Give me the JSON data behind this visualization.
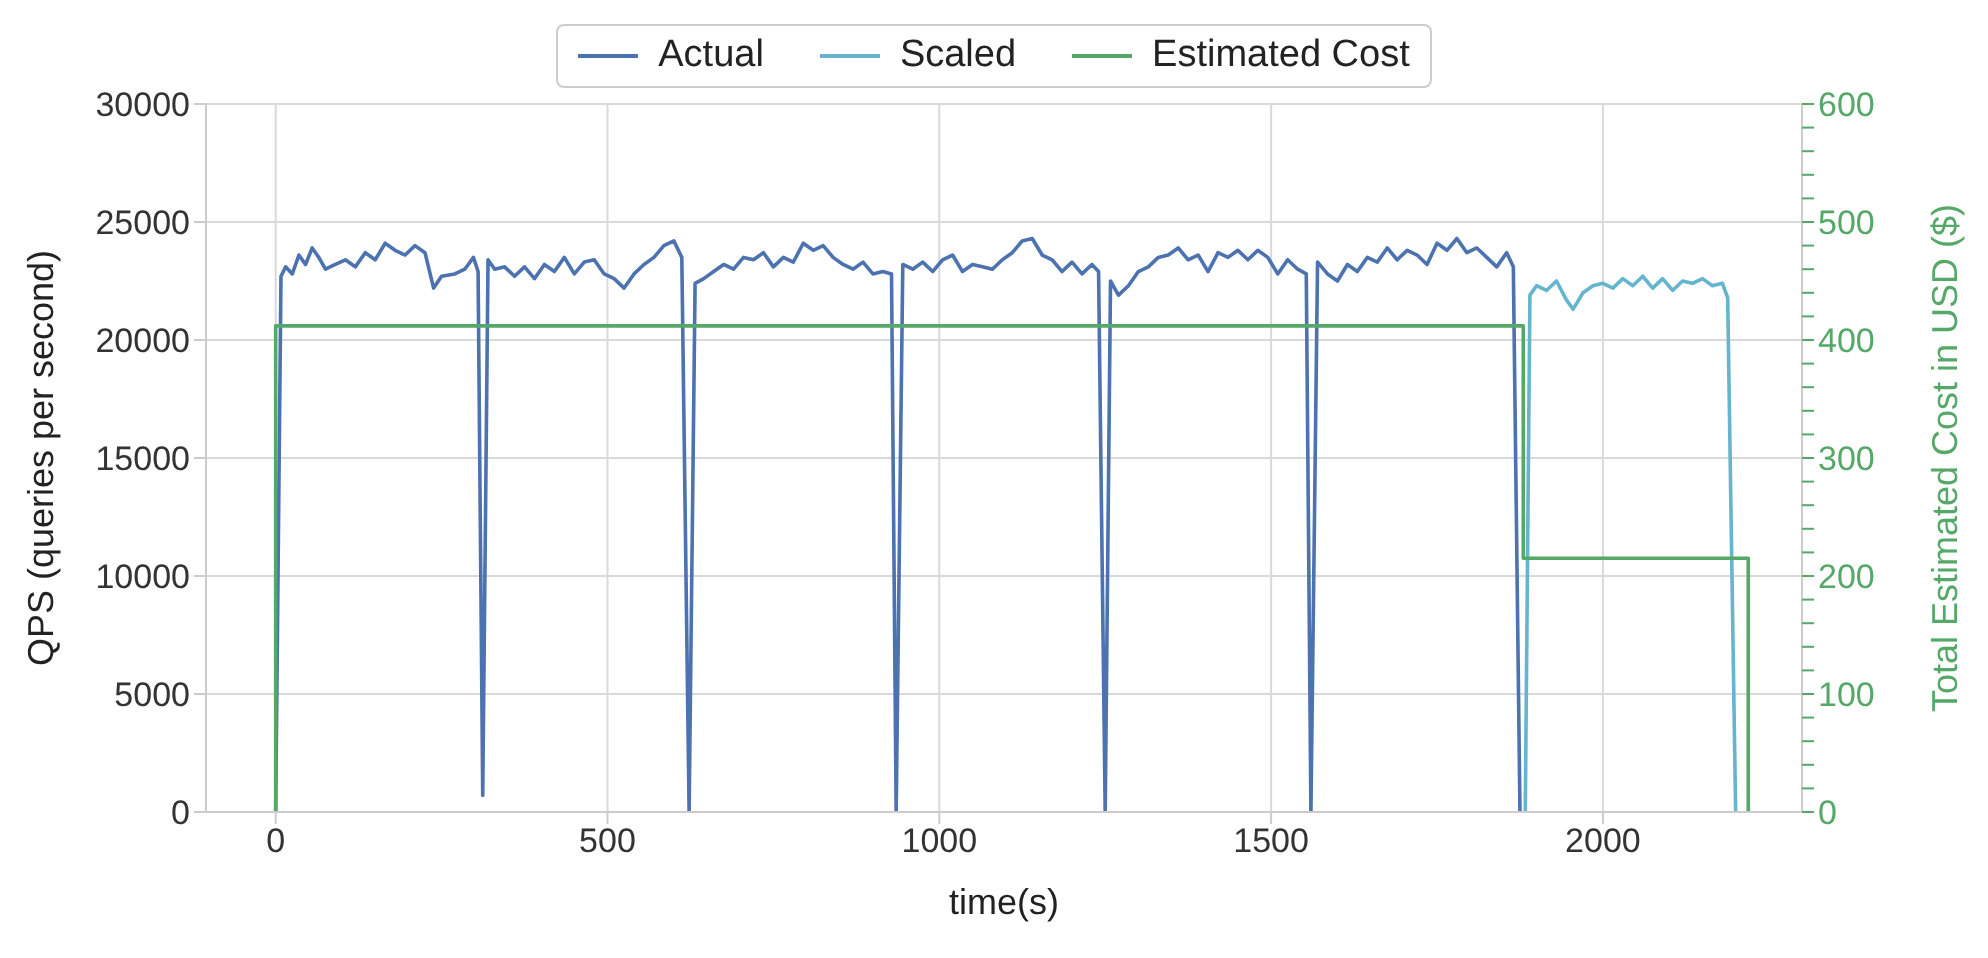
{
  "chart_data": {
    "type": "line",
    "xlabel": "time(s)",
    "ylabel": "QPS (queries per second)",
    "y2label": "Total Estimated Cost in USD ($)",
    "xlim": [
      -105,
      2300
    ],
    "xticks": [
      0,
      500,
      1000,
      1500,
      2000
    ],
    "ylim": [
      0,
      30000
    ],
    "yticks": [
      0,
      5000,
      10000,
      15000,
      20000,
      25000,
      30000
    ],
    "y2lim": [
      0,
      600
    ],
    "y2ticks": [
      0,
      {
        "value": 20,
        "label": null
      },
      {
        "value": 40,
        "label": null
      },
      {
        "value": 60,
        "label": null
      },
      {
        "value": 80,
        "label": null
      },
      100,
      {
        "value": 120,
        "label": null
      },
      {
        "value": 140,
        "label": null
      },
      {
        "value": 160,
        "label": null
      },
      {
        "value": 180,
        "label": null
      },
      200,
      {
        "value": 220,
        "label": null
      },
      {
        "value": 240,
        "label": null
      },
      {
        "value": 260,
        "label": null
      },
      {
        "value": 280,
        "label": null
      },
      300,
      {
        "value": 320,
        "label": null
      },
      {
        "value": 340,
        "label": null
      },
      {
        "value": 360,
        "label": null
      },
      {
        "value": 380,
        "label": null
      },
      400,
      {
        "value": 420,
        "label": null
      },
      {
        "value": 440,
        "label": null
      },
      {
        "value": 460,
        "label": null
      },
      {
        "value": 480,
        "label": null
      },
      500,
      {
        "value": 520,
        "label": null
      },
      {
        "value": 540,
        "label": null
      },
      {
        "value": 560,
        "label": null
      },
      {
        "value": 580,
        "label": null
      },
      600
    ],
    "grid": true,
    "legend": "top",
    "marker": "none",
    "series": [
      {
        "name": "Actual",
        "color": "#4c72b0",
        "x": [
          0,
          8,
          15,
          25,
          35,
          45,
          55,
          65,
          75,
          90,
          105,
          120,
          135,
          150,
          165,
          180,
          195,
          210,
          225,
          238,
          250,
          270,
          285,
          298,
          305,
          312,
          320,
          330,
          345,
          360,
          375,
          390,
          405,
          420,
          435,
          450,
          465,
          480,
          495,
          510,
          525,
          540,
          555,
          570,
          585,
          600,
          612,
          623,
          632,
          645,
          660,
          675,
          690,
          705,
          720,
          735,
          750,
          765,
          780,
          795,
          810,
          825,
          840,
          855,
          870,
          885,
          900,
          915,
          928,
          935,
          945,
          960,
          975,
          990,
          1005,
          1020,
          1035,
          1050,
          1065,
          1080,
          1095,
          1110,
          1125,
          1140,
          1155,
          1170,
          1185,
          1200,
          1215,
          1230,
          1240,
          1250,
          1258,
          1270,
          1285,
          1300,
          1315,
          1330,
          1345,
          1360,
          1375,
          1390,
          1405,
          1420,
          1435,
          1450,
          1465,
          1480,
          1495,
          1510,
          1525,
          1540,
          1553,
          1560,
          1570,
          1585,
          1600,
          1615,
          1630,
          1645,
          1660,
          1675,
          1690,
          1705,
          1720,
          1735,
          1750,
          1765,
          1780,
          1795,
          1810,
          1825,
          1840,
          1855,
          1865,
          1875
        ],
        "values": [
          0,
          22700,
          23100,
          22800,
          23600,
          23200,
          23900,
          23500,
          23000,
          23200,
          23400,
          23100,
          23700,
          23400,
          24100,
          23800,
          23600,
          24000,
          23700,
          22200,
          22700,
          22800,
          23000,
          23500,
          22900,
          700,
          23400,
          23000,
          23100,
          22700,
          23100,
          22600,
          23200,
          22900,
          23500,
          22800,
          23300,
          23400,
          22800,
          22600,
          22200,
          22800,
          23200,
          23500,
          24000,
          24200,
          23500,
          0,
          22400,
          22600,
          22900,
          23200,
          23000,
          23500,
          23400,
          23700,
          23100,
          23500,
          23300,
          24100,
          23800,
          24000,
          23500,
          23200,
          23000,
          23300,
          22800,
          22900,
          22800,
          0,
          23200,
          23000,
          23300,
          22900,
          23400,
          23600,
          22900,
          23200,
          23100,
          23000,
          23400,
          23700,
          24200,
          24300,
          23600,
          23400,
          22900,
          23300,
          22800,
          23200,
          22900,
          0,
          22500,
          21900,
          22300,
          22900,
          23100,
          23500,
          23600,
          23900,
          23400,
          23600,
          22900,
          23700,
          23500,
          23800,
          23400,
          23800,
          23500,
          22800,
          23400,
          23000,
          22800,
          0,
          23300,
          22800,
          22500,
          23200,
          22900,
          23500,
          23300,
          23900,
          23400,
          23800,
          23600,
          23200,
          24100,
          23800,
          24300,
          23700,
          23900,
          23500,
          23100,
          23700,
          23100,
          0
        ]
      },
      {
        "name": "Scaled",
        "color": "#64b5cd",
        "x": [
          1883,
          1890,
          1900,
          1915,
          1930,
          1945,
          1955,
          1970,
          1985,
          2000,
          2015,
          2030,
          2045,
          2060,
          2075,
          2090,
          2105,
          2120,
          2135,
          2150,
          2165,
          2180,
          2188,
          2200
        ],
        "values": [
          0,
          21900,
          22300,
          22100,
          22500,
          21700,
          21300,
          22000,
          22300,
          22400,
          22200,
          22600,
          22300,
          22700,
          22200,
          22600,
          22100,
          22500,
          22400,
          22600,
          22300,
          22400,
          21800,
          0
        ]
      },
      {
        "name": "Estimated Cost",
        "type": "step",
        "axis": "y2",
        "color": "#55a868",
        "x": [
          0,
          0,
          1880,
          2219
        ],
        "values": [
          0,
          412,
          215,
          0
        ]
      }
    ]
  }
}
